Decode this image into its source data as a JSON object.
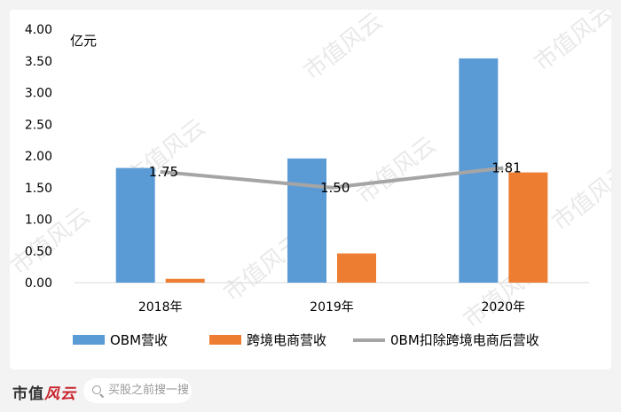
{
  "chart_data": {
    "type": "bar",
    "unit_label": "亿元",
    "categories": [
      "2018年",
      "2019年",
      "2020年"
    ],
    "ylim": [
      0,
      4
    ],
    "yticks": [
      "0.00",
      "0.50",
      "1.00",
      "1.50",
      "2.00",
      "2.50",
      "3.00",
      "3.50",
      "4.00"
    ],
    "series": [
      {
        "name": "OBM营收",
        "kind": "bar",
        "color": "#5b9bd5",
        "values": [
          1.81,
          1.96,
          3.54
        ]
      },
      {
        "name": "跨境电商营收",
        "kind": "bar",
        "color": "#ed7d31",
        "values": [
          0.06,
          0.46,
          1.74
        ]
      },
      {
        "name": "0BM扣除跨境电商后营收",
        "kind": "line",
        "color": "#a5a5a5",
        "values": [
          1.75,
          1.5,
          1.81
        ],
        "labels": [
          "1.75",
          "1.50",
          "1.81"
        ]
      }
    ],
    "legend_position": "bottom",
    "grid": false
  },
  "watermark": "市值风云",
  "footer": {
    "brand_text": "市值",
    "brand_script": "风云",
    "search_placeholder": "买股之前搜一搜",
    "search_icon": "search-icon"
  }
}
